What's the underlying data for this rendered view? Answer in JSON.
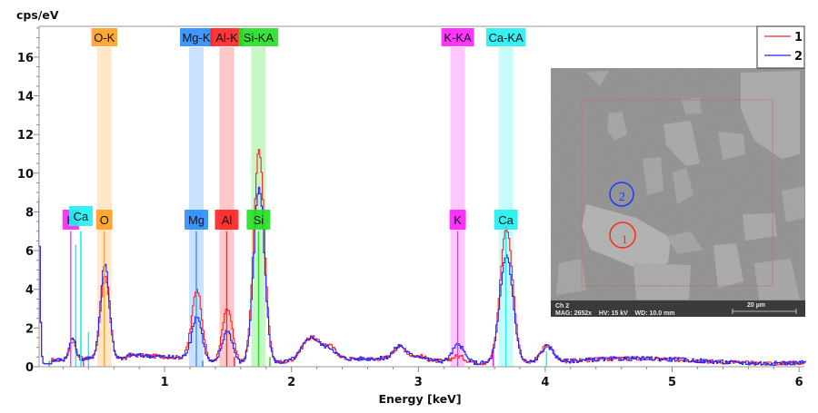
{
  "chart_data": {
    "type": "line",
    "title": "",
    "xlabel": "Energy [keV]",
    "ylabel": "cps/eV",
    "xlim": [
      0,
      6.05
    ],
    "ylim": [
      0,
      17.5
    ],
    "x_ticks": [
      1,
      2,
      3,
      4,
      5,
      6
    ],
    "y_ticks": [
      0,
      2,
      4,
      6,
      8,
      10,
      12,
      14,
      16
    ],
    "grid": false,
    "legend": {
      "position": "top-right",
      "entries": [
        {
          "name": "1",
          "color": "#ff2020"
        },
        {
          "name": "2",
          "color": "#2020ff"
        }
      ]
    },
    "series": [
      {
        "name": "1",
        "color": "#ff2020",
        "peaks": [
          {
            "x": 0.0,
            "height": 8.5,
            "width": 0.012
          },
          {
            "x": 0.27,
            "height": 0.9,
            "width": 0.025
          },
          {
            "x": 0.525,
            "height": 4.2,
            "width": 0.035
          },
          {
            "x": 1.25,
            "height": 3.8,
            "width": 0.04
          },
          {
            "x": 1.49,
            "height": 2.8,
            "width": 0.04
          },
          {
            "x": 1.74,
            "height": 11.0,
            "width": 0.042
          },
          {
            "x": 2.15,
            "height": 1.2,
            "width": 0.07
          },
          {
            "x": 2.3,
            "height": 0.6,
            "width": 0.05
          },
          {
            "x": 2.85,
            "height": 0.65,
            "width": 0.05
          },
          {
            "x": 3.0,
            "height": 0.2,
            "width": 0.05
          },
          {
            "x": 3.31,
            "height": 0.3,
            "width": 0.05
          },
          {
            "x": 3.69,
            "height": 7.0,
            "width": 0.05
          },
          {
            "x": 4.01,
            "height": 0.85,
            "width": 0.05
          }
        ],
        "baseline": 0.3
      },
      {
        "name": "2",
        "color": "#2020ff",
        "peaks": [
          {
            "x": 0.0,
            "height": 8.6,
            "width": 0.012
          },
          {
            "x": 0.27,
            "height": 1.1,
            "width": 0.025
          },
          {
            "x": 0.525,
            "height": 4.9,
            "width": 0.035
          },
          {
            "x": 1.25,
            "height": 2.4,
            "width": 0.04
          },
          {
            "x": 1.49,
            "height": 1.7,
            "width": 0.04
          },
          {
            "x": 1.74,
            "height": 9.0,
            "width": 0.042
          },
          {
            "x": 2.15,
            "height": 1.2,
            "width": 0.07
          },
          {
            "x": 2.3,
            "height": 0.5,
            "width": 0.05
          },
          {
            "x": 2.85,
            "height": 0.7,
            "width": 0.05
          },
          {
            "x": 3.0,
            "height": 0.2,
            "width": 0.05
          },
          {
            "x": 3.31,
            "height": 0.9,
            "width": 0.045
          },
          {
            "x": 3.69,
            "height": 5.6,
            "width": 0.05
          },
          {
            "x": 4.01,
            "height": 0.8,
            "width": 0.05
          }
        ],
        "baseline": 0.3
      }
    ],
    "element_bands": [
      {
        "label": "O-K",
        "marker": "O",
        "x": 0.525,
        "color": "#ffa020",
        "line_height": 7.0
      },
      {
        "label": "Mg-K",
        "marker": "Mg",
        "x": 1.25,
        "color": "#2a8cff",
        "line_height": 7.0
      },
      {
        "label": "Al-K",
        "marker": "Al",
        "x": 1.49,
        "color": "#ff2020",
        "line_height": 7.0
      },
      {
        "label": "Si-KA",
        "marker": "Si",
        "x": 1.74,
        "color": "#20e020",
        "line_height": 7.0
      },
      {
        "label": "K-KA",
        "marker": "K",
        "x": 3.31,
        "color": "#ff20ff",
        "line_height": 7.0
      },
      {
        "label": "Ca-KA",
        "marker": "Ca",
        "x": 3.69,
        "color": "#20f0f0",
        "line_height": 7.0
      }
    ],
    "extra_markers": [
      {
        "marker": "K",
        "x": 0.26,
        "color": "#ff20ff",
        "line_height": 7.0
      },
      {
        "marker": "Ca",
        "x": 0.34,
        "color": "#20f0f0",
        "line_height": 7.0
      }
    ],
    "satellite_lines": [
      {
        "x": 0.3,
        "height": 6.3,
        "color": "#20f0f0"
      },
      {
        "x": 0.34,
        "height": 7.0,
        "color": "#20f0f0"
      },
      {
        "x": 0.4,
        "height": 1.8,
        "color": "#20f0f0"
      },
      {
        "x": 0.36,
        "height": 0.4,
        "color": "#ff20ff"
      },
      {
        "x": 1.3,
        "height": 0.3,
        "color": "#2a8cff"
      },
      {
        "x": 1.55,
        "height": 0.5,
        "color": "#ff2020"
      },
      {
        "x": 1.83,
        "height": 0.5,
        "color": "#20e020"
      },
      {
        "x": 0.09,
        "height": 0.3,
        "color": "#20e020"
      },
      {
        "x": 3.59,
        "height": 0.9,
        "color": "#ff20ff"
      },
      {
        "x": 4.01,
        "height": 0.8,
        "color": "#20f0f0"
      }
    ]
  },
  "sem_image": {
    "channel": "Ch 2",
    "info": "MAG: 2652x    HV: 15 kV    WD: 10.0 mm",
    "scale_bar": "20 µm",
    "points": [
      {
        "label": "1",
        "color": "#ff2a10"
      },
      {
        "label": "2",
        "color": "#1a3cff"
      }
    ]
  }
}
